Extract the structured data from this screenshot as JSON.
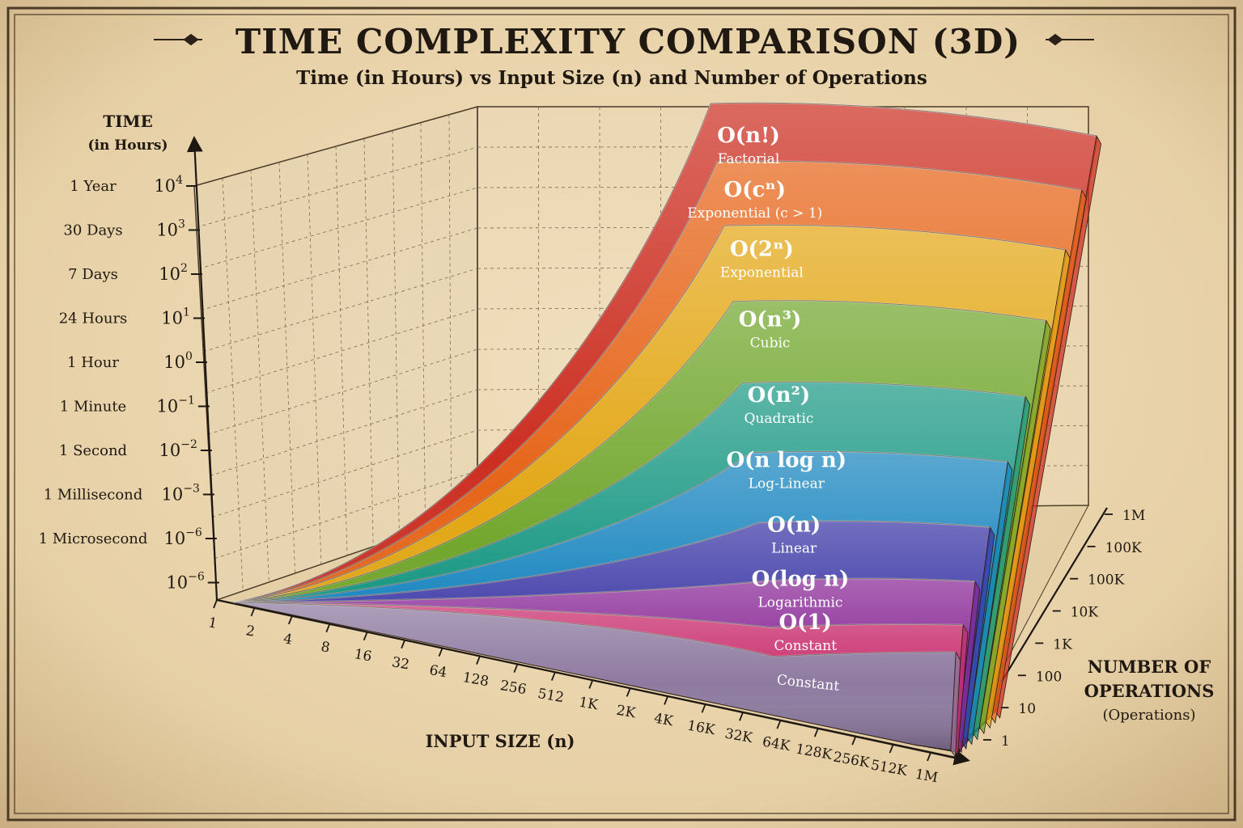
{
  "title": "TIME COMPLEXITY COMPARISON (3D)",
  "subtitle": "Time (in Hours) vs Input Size (n) and Number of Operations",
  "chart_data": {
    "type": "area",
    "title": "TIME COMPLEXITY COMPARISON (3D)",
    "subtitle": "Time (in Hours) vs Input Size (n) and Number of Operations",
    "y_axis": {
      "label": "TIME",
      "sublabel": "(in Hours)",
      "scale": "log",
      "ticks": [
        {
          "name": "1 Year",
          "base": "10",
          "exp": "4"
        },
        {
          "name": "30 Days",
          "base": "10",
          "exp": "3"
        },
        {
          "name": "7 Days",
          "base": "10",
          "exp": "2"
        },
        {
          "name": "24 Hours",
          "base": "10",
          "exp": "1"
        },
        {
          "name": "1 Hour",
          "base": "10",
          "exp": "0"
        },
        {
          "name": "1 Minute",
          "base": "10",
          "exp": "−1"
        },
        {
          "name": "1 Second",
          "base": "10",
          "exp": "−2"
        },
        {
          "name": "1 Millisecond",
          "base": "10",
          "exp": "−3"
        },
        {
          "name": "1 Microsecond",
          "base": "10",
          "exp": "−6"
        },
        {
          "name": "",
          "base": "10",
          "exp": "−6"
        }
      ]
    },
    "x_axis": {
      "label": "INPUT SIZE (n)",
      "ticks": [
        "1",
        "2",
        "4",
        "8",
        "16",
        "32",
        "64",
        "128",
        "256",
        "512",
        "1K",
        "2K",
        "4K",
        "16K",
        "32K",
        "64K",
        "128K",
        "256K",
        "512K",
        "1M"
      ]
    },
    "z_axis": {
      "label_line1": "NUMBER OF",
      "label_line2": "OPERATIONS",
      "sublabel": "(Operations)",
      "ticks": [
        "1",
        "10",
        "100",
        "1K",
        "10K",
        "100K",
        "100K",
        "1M"
      ]
    },
    "series": [
      {
        "notation": "O(n!)",
        "name": "Factorial",
        "color": "#cc2f22",
        "level": 1.0
      },
      {
        "notation": "O(cⁿ)",
        "name": "Exponential (c > 1)",
        "color": "#e6651a",
        "level": 0.9
      },
      {
        "notation": "O(2ⁿ)",
        "name": "Exponential",
        "color": "#e3a716",
        "level": 0.79
      },
      {
        "notation": "O(n³)",
        "name": "Cubic",
        "color": "#72a72e",
        "level": 0.66
      },
      {
        "notation": "O(n²)",
        "name": "Quadratic",
        "color": "#1e9a86",
        "level": 0.52
      },
      {
        "notation": "O(n log n)",
        "name": "Log-Linear",
        "color": "#1a86bf",
        "level": 0.4
      },
      {
        "notation": "O(n)",
        "name": "Linear",
        "color": "#3b37a6",
        "level": 0.28
      },
      {
        "notation": "O(log n)",
        "name": "Logarithmic",
        "color": "#8a2a97",
        "level": 0.18
      },
      {
        "notation": "O(1)",
        "name": "Constant",
        "color": "#c9306f",
        "level": 0.1
      },
      {
        "notation": "",
        "name": "Constant",
        "color": "#8e7aa0",
        "level": 0.05
      }
    ]
  }
}
